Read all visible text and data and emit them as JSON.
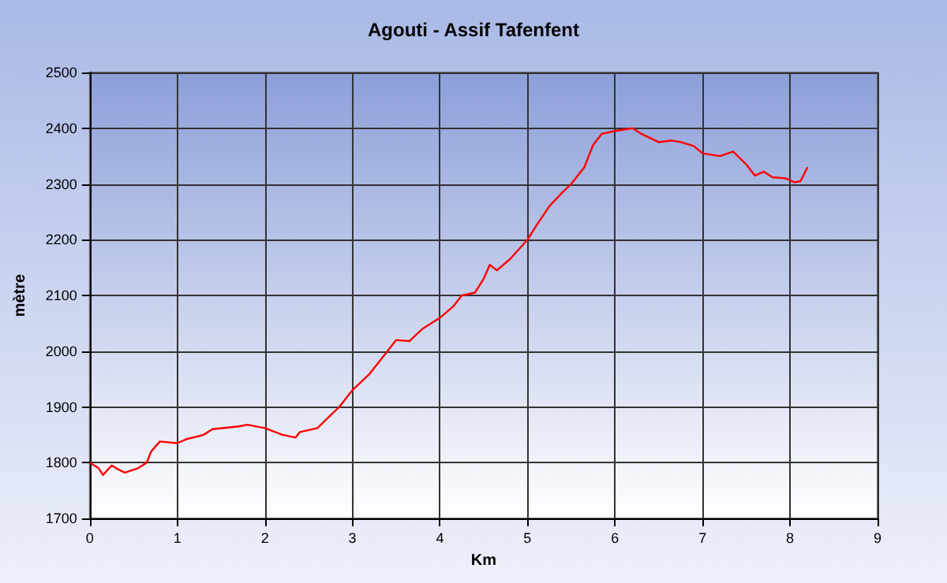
{
  "chart_data": {
    "type": "line",
    "title": "Agouti - Assif Tafenfent",
    "xlabel": "Km",
    "ylabel": "mètre",
    "xlim": [
      0,
      9
    ],
    "xticks": [
      0,
      1,
      2,
      3,
      4,
      5,
      6,
      7,
      8,
      9
    ],
    "ylim": [
      1700,
      2500
    ],
    "yticks": [
      1700,
      1800,
      1900,
      2000,
      2100,
      2200,
      2300,
      2400,
      2500
    ],
    "grid": true,
    "marker": "none",
    "line_style": "solid",
    "series": [
      {
        "color": "#ff0000",
        "x": [
          0,
          0.1,
          0.15,
          0.25,
          0.3,
          0.4,
          0.55,
          0.65,
          0.7,
          0.8,
          1.0,
          1.1,
          1.3,
          1.4,
          1.7,
          1.8,
          2.0,
          2.2,
          2.35,
          2.4,
          2.6,
          2.75,
          2.85,
          2.95,
          3.0,
          3.2,
          3.4,
          3.5,
          3.65,
          3.8,
          4.0,
          4.15,
          4.25,
          4.4,
          4.5,
          4.57,
          4.65,
          4.8,
          5.0,
          5.1,
          5.25,
          5.4,
          5.5,
          5.65,
          5.75,
          5.85,
          6.0,
          6.2,
          6.3,
          6.5,
          6.65,
          6.75,
          6.9,
          7.0,
          7.2,
          7.35,
          7.5,
          7.6,
          7.7,
          7.8,
          7.95,
          8.05,
          8.12,
          8.2
        ],
        "values": [
          1800,
          1790,
          1778,
          1795,
          1790,
          1782,
          1790,
          1800,
          1820,
          1838,
          1835,
          1842,
          1850,
          1860,
          1865,
          1868,
          1862,
          1850,
          1845,
          1855,
          1862,
          1885,
          1900,
          1920,
          1930,
          1960,
          2000,
          2020,
          2018,
          2040,
          2060,
          2080,
          2100,
          2105,
          2130,
          2155,
          2145,
          2165,
          2200,
          2225,
          2260,
          2285,
          2300,
          2330,
          2370,
          2390,
          2395,
          2400,
          2390,
          2375,
          2378,
          2375,
          2368,
          2355,
          2350,
          2358,
          2335,
          2315,
          2322,
          2312,
          2310,
          2303,
          2305,
          2330
        ]
      }
    ]
  }
}
